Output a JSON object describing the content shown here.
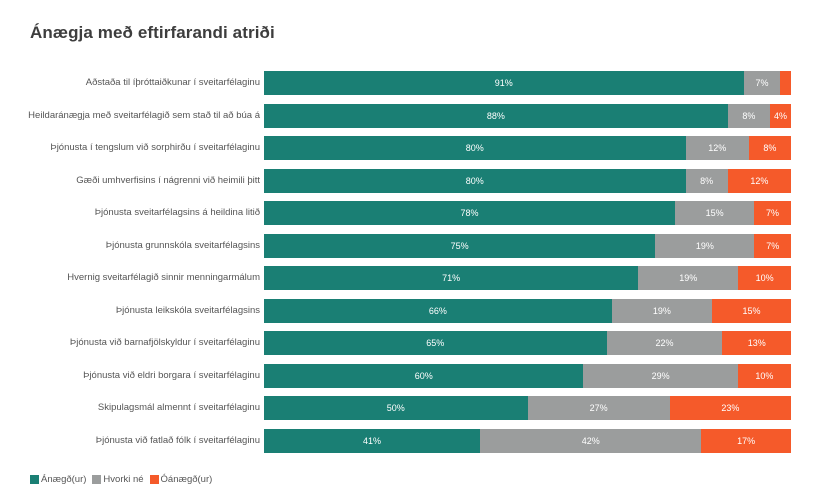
{
  "colors": {
    "satisfied": "#1a7f74",
    "neutral": "#9b9d9d",
    "dissatisfied": "#f55a2a"
  },
  "chart_data": {
    "type": "bar",
    "orientation": "horizontal",
    "stacked": true,
    "title": "Ánægja með eftirfarandi atriði",
    "xlabel": "",
    "ylabel": "",
    "xlim": [
      0,
      100
    ],
    "grid": false,
    "legend_position": "bottom-left",
    "categories": [
      "Aðstaða til íþróttaiðkunar í sveitarfélaginu",
      "Heildaránægja með sveitarfélagið sem stað til að búa á",
      "Þjónusta í tengslum við sorphirðu í sveitarfélaginu",
      "Gæði umhverfisins í nágrenni við heimili þitt",
      "Þjónusta sveitarfélagsins á heildina litið",
      "Þjónusta grunnskóla sveitarfélagsins",
      "Hvernig sveitarfélagið sinnir menningarmálum",
      "Þjónusta leikskóla sveitarfélagsins",
      "Þjónusta við barnafjölskyldur í sveitarfélaginu",
      "Þjónusta við eldri borgara í sveitarfélaginu",
      "Skipulagsmál almennt í sveitarfélaginu",
      "Þjónusta við fatlað fólk í sveitarfélaginu"
    ],
    "series": [
      {
        "name": "Ánægð(ur)",
        "values": [
          91,
          88,
          80,
          80,
          78,
          75,
          71,
          66,
          65,
          60,
          50,
          41
        ],
        "labels": [
          "91%",
          "88%",
          "80%",
          "80%",
          "78%",
          "75%",
          "71%",
          "66%",
          "65%",
          "60%",
          "50%",
          "41%"
        ]
      },
      {
        "name": "Hvorki né",
        "values": [
          7,
          8,
          12,
          8,
          15,
          19,
          19,
          19,
          22,
          29,
          27,
          42
        ],
        "labels": [
          "7%",
          "8%",
          "12%",
          "8%",
          "15%",
          "19%",
          "19%",
          "19%",
          "22%",
          "29%",
          "27%",
          "42%"
        ]
      },
      {
        "name": "Óánægð(ur)",
        "values": [
          2,
          4,
          8,
          12,
          7,
          7,
          10,
          15,
          13,
          10,
          23,
          17
        ],
        "labels": [
          "",
          "4%",
          "8%",
          "12%",
          "7%",
          "7%",
          "10%",
          "15%",
          "13%",
          "10%",
          "23%",
          "17%"
        ]
      }
    ]
  }
}
